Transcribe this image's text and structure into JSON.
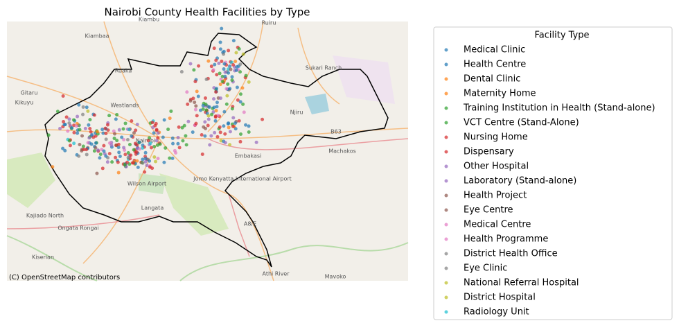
{
  "title": "Nairobi County Health Facilities by Type",
  "legend": {
    "title": "Facility Type",
    "items": [
      {
        "label": "Medical Clinic",
        "color": "#1f77b4"
      },
      {
        "label": "Health Centre",
        "color": "#1f77b4"
      },
      {
        "label": "Dental Clinic",
        "color": "#ff7f0e"
      },
      {
        "label": "Maternity Home",
        "color": "#ff7f0e"
      },
      {
        "label": "Training Institution in Health (Stand-alone)",
        "color": "#2ca02c"
      },
      {
        "label": "VCT Centre (Stand-Alone)",
        "color": "#2ca02c"
      },
      {
        "label": "Nursing Home",
        "color": "#d62728"
      },
      {
        "label": "Dispensary",
        "color": "#d62728"
      },
      {
        "label": "Other Hospital",
        "color": "#9467bd"
      },
      {
        "label": "Laboratory (Stand-alone)",
        "color": "#9467bd"
      },
      {
        "label": "Health Project",
        "color": "#8c564b"
      },
      {
        "label": "Eye Centre",
        "color": "#8c564b"
      },
      {
        "label": "Medical Centre",
        "color": "#e377c2"
      },
      {
        "label": "Health Programme",
        "color": "#e377c2"
      },
      {
        "label": "District Health Office",
        "color": "#7f7f7f"
      },
      {
        "label": "Eye Clinic",
        "color": "#7f7f7f"
      },
      {
        "label": "National Referral Hospital",
        "color": "#bcbd22"
      },
      {
        "label": "District Hospital",
        "color": "#bcbd22"
      },
      {
        "label": "Radiology Unit",
        "color": "#17becf"
      }
    ]
  },
  "map_labels": [
    "Kiambu",
    "Ruiru",
    "Ruaka",
    "Kikuyu",
    "Gitaru",
    "Westlands",
    "Nairobi",
    "Langata",
    "Wilson Airport",
    "Jomo Kenyatta International Airport",
    "Embakasi",
    "Ongata Rongai",
    "Kiserian",
    "Athi River",
    "Mavoko",
    "Machakos",
    "Sukari Ranch",
    "Kiambaa",
    "Njiru",
    "Kajiado North",
    "B63",
    "A8/E"
  ],
  "attribution": "(C) OpenStreetMap contributors"
}
